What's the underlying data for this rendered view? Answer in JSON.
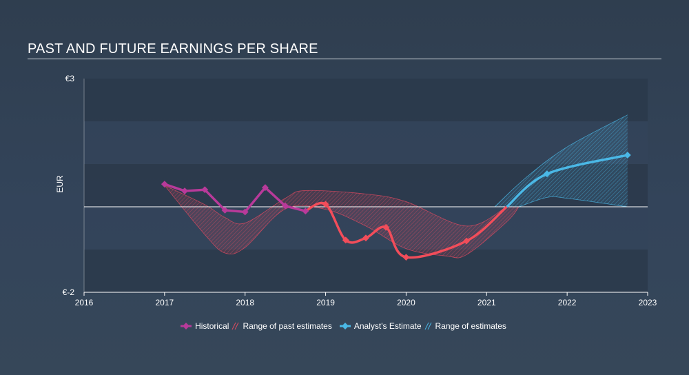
{
  "title": "PAST AND FUTURE EARNINGS PER SHARE",
  "colors": {
    "historical": "#b83a9a",
    "historical_recent": "#f24d5a",
    "estimate": "#4ab8e6",
    "past_range": "#e04a60",
    "future_range": "#4ab8e6"
  },
  "legend": {
    "historical": "Historical",
    "past_range": "Range of past estimates",
    "estimate": "Analyst's Estimate",
    "future_range": "Range of estimates"
  },
  "chart_data": {
    "type": "line",
    "ylabel": "EUR",
    "ylim": [
      -2,
      3
    ],
    "xlim": [
      2016,
      2023
    ],
    "y_tick_labels": [
      "€3",
      "€-2"
    ],
    "x_tick_labels": [
      "2016",
      "2017",
      "2018",
      "2019",
      "2020",
      "2021",
      "2022",
      "2023"
    ],
    "zero_line": 0,
    "series": [
      {
        "name": "Historical",
        "points": [
          [
            2017.0,
            0.53
          ],
          [
            2017.25,
            0.37
          ],
          [
            2017.5,
            0.4
          ],
          [
            2017.75,
            -0.08
          ],
          [
            2018.0,
            -0.12
          ],
          [
            2018.25,
            0.45
          ],
          [
            2018.5,
            0.02
          ],
          [
            2018.75,
            -0.1
          ],
          [
            2019.0,
            0.06
          ],
          [
            2019.25,
            -0.78
          ],
          [
            2019.5,
            -0.73
          ],
          [
            2019.75,
            -0.48
          ],
          [
            2020.0,
            -1.18
          ],
          [
            2020.75,
            -0.8
          ],
          [
            2021.25,
            0.0
          ]
        ]
      },
      {
        "name": "Analyst's Estimate",
        "points": [
          [
            2021.25,
            0.0
          ],
          [
            2021.75,
            0.77
          ],
          [
            2022.75,
            1.21
          ]
        ]
      },
      {
        "name": "Range of past estimates",
        "upper": [
          [
            2017.0,
            0.5
          ],
          [
            2017.5,
            0.05
          ],
          [
            2017.75,
            -0.25
          ],
          [
            2018.0,
            -0.38
          ],
          [
            2018.5,
            0.2
          ],
          [
            2018.75,
            0.38
          ],
          [
            2019.5,
            0.3
          ],
          [
            2020.0,
            0.12
          ],
          [
            2020.75,
            -0.45
          ],
          [
            2021.25,
            0.0
          ]
        ],
        "lower": [
          [
            2017.0,
            0.5
          ],
          [
            2017.5,
            -0.65
          ],
          [
            2017.75,
            -1.08
          ],
          [
            2018.0,
            -0.95
          ],
          [
            2018.5,
            -0.05
          ],
          [
            2019.0,
            -0.06
          ],
          [
            2019.5,
            -0.45
          ],
          [
            2020.0,
            -0.98
          ],
          [
            2020.5,
            -1.15
          ],
          [
            2020.75,
            -1.12
          ],
          [
            2021.25,
            -0.35
          ],
          [
            2021.4,
            0.0
          ]
        ]
      },
      {
        "name": "Range of estimates",
        "upper": [
          [
            2021.1,
            0.0
          ],
          [
            2021.5,
            0.7
          ],
          [
            2022.0,
            1.4
          ],
          [
            2022.75,
            2.15
          ]
        ],
        "lower": [
          [
            2021.4,
            0.0
          ],
          [
            2021.75,
            0.22
          ],
          [
            2022.0,
            0.2
          ],
          [
            2022.75,
            0.0
          ]
        ]
      }
    ]
  }
}
